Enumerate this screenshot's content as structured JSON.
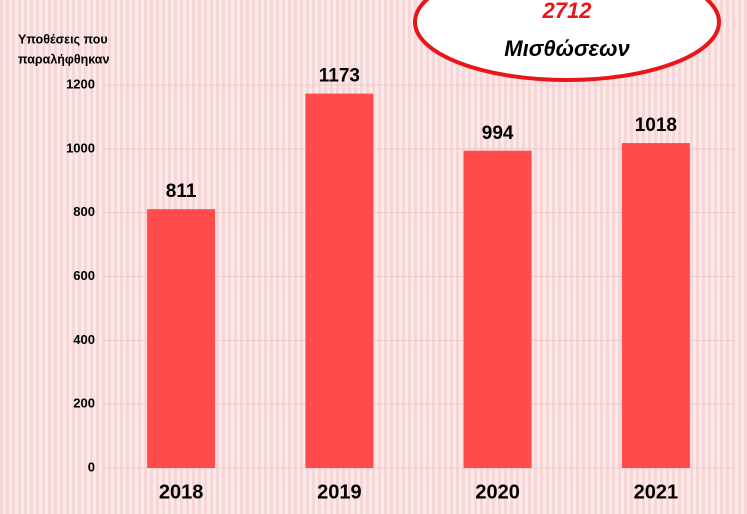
{
  "chart_data": {
    "type": "bar",
    "y_label": [
      "Υποθέσεις που",
      "παραλήφθηκαν"
    ],
    "annotation": [
      "2712",
      "Μισθώσεων"
    ],
    "categories": [
      "2018",
      "2019",
      "2020",
      "2021"
    ],
    "values": [
      811,
      1173,
      994,
      1018
    ],
    "color": "#ff4b4b",
    "ylim": [
      0,
      1200
    ],
    "yticks": [
      0,
      200,
      400,
      600,
      800,
      1000,
      1200
    ],
    "grid": true
  }
}
